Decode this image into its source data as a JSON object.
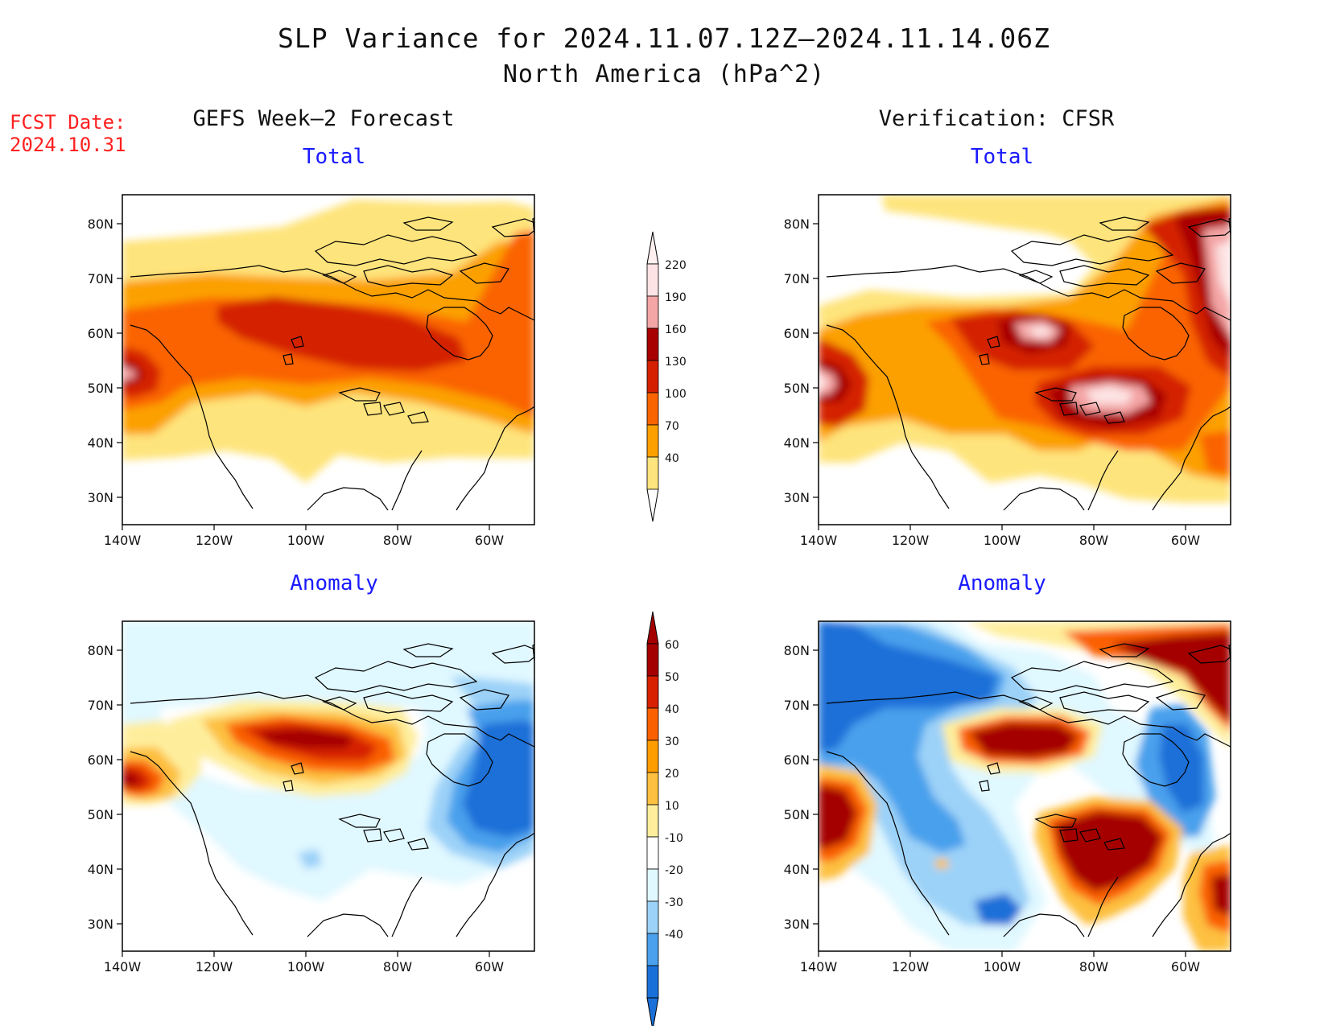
{
  "header": {
    "title": "SLP Variance for 2024.11.07.12Z–2024.11.14.06Z",
    "subtitle": "North America (hPa^2)",
    "fcst_label": "FCST Date:",
    "fcst_date": "2024.10.31"
  },
  "columns": {
    "left": "GEFS Week–2 Forecast",
    "right": "Verification: CFSR"
  },
  "panels": {
    "total_label": "Total",
    "anomaly_label": "Anomaly"
  },
  "axes": {
    "lat_ticks": [
      "80N",
      "70N",
      "60N",
      "50N",
      "40N",
      "30N"
    ],
    "lon_ticks": [
      "140W",
      "120W",
      "100W",
      "80W",
      "60W"
    ]
  },
  "colorbars": {
    "total": {
      "labels": [
        "220",
        "190",
        "160",
        "130",
        "100",
        "70",
        "40"
      ],
      "colors": [
        "#fde3e3",
        "#f4a5a5",
        "#a80000",
        "#d42000",
        "#fa6400",
        "#fca000",
        "#fee47c"
      ]
    },
    "anomaly": {
      "labels": [
        "60",
        "50",
        "40",
        "30",
        "20",
        "10",
        "-10",
        "-20",
        "-30",
        "-40"
      ],
      "colors": [
        "#a50000",
        "#d62000",
        "#fa6000",
        "#fd9d00",
        "#fdc040",
        "#feee9c",
        "#ffffff",
        "#e0f8ff",
        "#9cd2f8",
        "#4aa0ec",
        "#1a70d8"
      ]
    }
  }
}
